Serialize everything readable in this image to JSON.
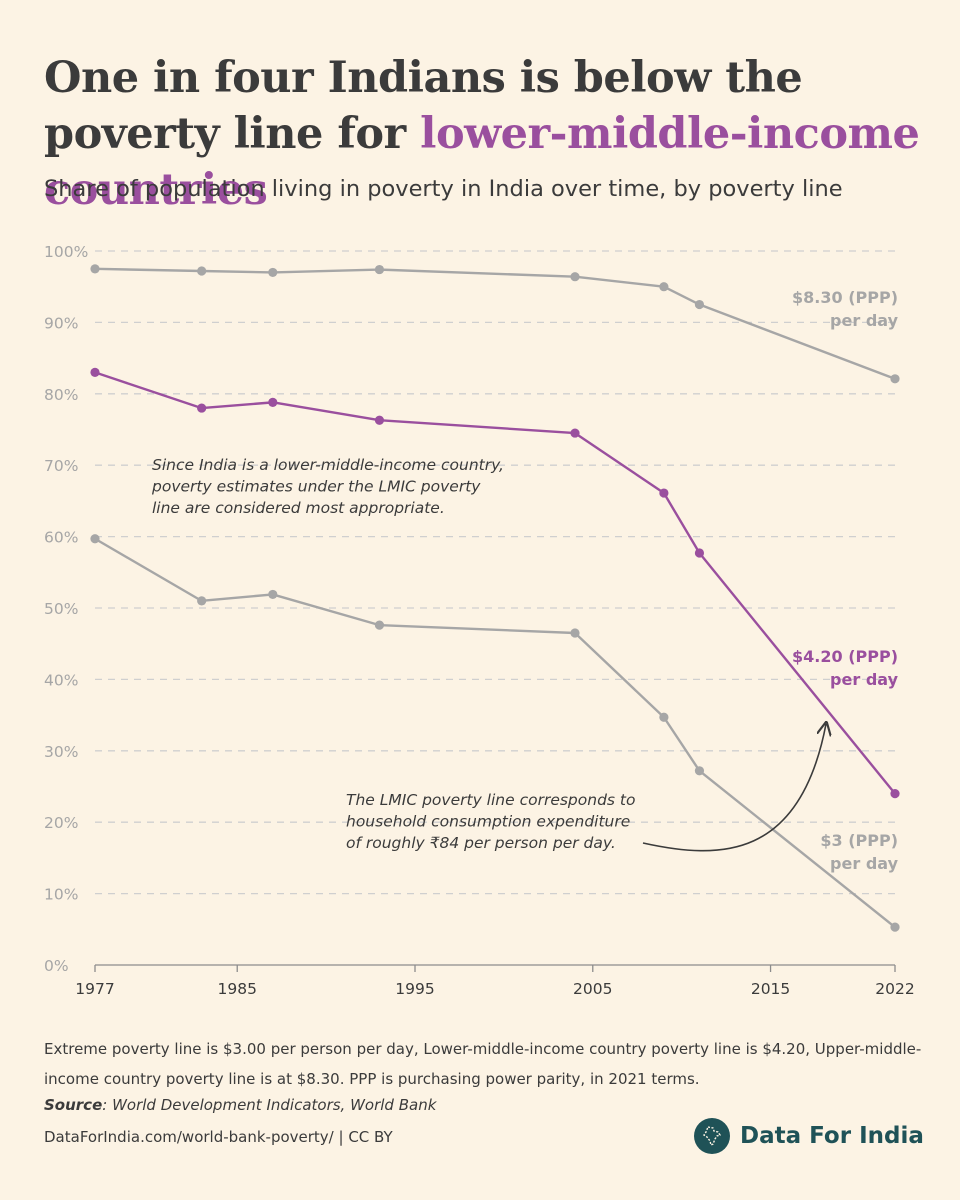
{
  "header": {
    "title_part1": "One in four Indians is below the poverty line for ",
    "title_highlight": "lower-middle-income countries",
    "subtitle": "Share of population living in poverty in India over time, by poverty line"
  },
  "colors": {
    "background": "#fcf3e4",
    "lmic_line": "#9a4f9e",
    "other_lines": "#a6a6a6",
    "text": "#3b3b3b",
    "brand": "#1f5257"
  },
  "chart_data": {
    "type": "line",
    "title": "",
    "xlabel": "",
    "ylabel": "",
    "xlim": [
      1977,
      2022
    ],
    "ylim": [
      0,
      100
    ],
    "x_ticks": [
      "1977",
      "1985",
      "1995",
      "2005",
      "2015",
      "2022"
    ],
    "y_ticks": [
      "0%",
      "10%",
      "20%",
      "30%",
      "40%",
      "50%",
      "60%",
      "70%",
      "80%",
      "90%",
      "100%"
    ],
    "grid": "horizontal dashed",
    "x": [
      1977,
      1983,
      1987,
      1993,
      2004,
      2009,
      2011,
      2022
    ],
    "series": [
      {
        "name": "$8.30 (PPP) per day",
        "label_lines": [
          "$8.30 (PPP)",
          "per day"
        ],
        "color": "#a6a6a6",
        "values": [
          97.5,
          97.2,
          97.0,
          97.4,
          96.4,
          95.0,
          92.5,
          82.1
        ]
      },
      {
        "name": "$4.20 (PPP) per day",
        "label_lines": [
          "$4.20 (PPP)",
          "per day"
        ],
        "color": "#9a4f9e",
        "values": [
          83.0,
          78.0,
          78.8,
          76.3,
          74.5,
          66.1,
          57.7,
          24.0
        ]
      },
      {
        "name": "$3 (PPP) per day",
        "label_lines": [
          "$3 (PPP)",
          "per day"
        ],
        "color": "#a6a6a6",
        "values": [
          59.7,
          51.0,
          51.9,
          47.6,
          46.5,
          34.7,
          27.2,
          5.3
        ]
      }
    ],
    "annotations": [
      {
        "lines": [
          "Since India is a lower-middle-income country,",
          "poverty estimates under the LMIC poverty",
          "line are considered most appropriate."
        ]
      },
      {
        "lines": [
          "The LMIC poverty line corresponds to",
          "household consumption expenditure",
          "of roughly ₹84 per person per day."
        ]
      }
    ]
  },
  "footer": {
    "note": "Extreme poverty line is $3.00 per person per day, Lower-middle-income country poverty line is $4.20, Upper-middle-income country poverty line is at $8.30. PPP is purchasing power parity, in 2021 terms.",
    "source_label": "Source",
    "source_text": ": World Development Indicators, World Bank",
    "url": "DataForIndia.com/world-bank-poverty/  |  CC BY",
    "brand": "Data For India",
    "brand_logo_icon": "india-map-icon"
  }
}
